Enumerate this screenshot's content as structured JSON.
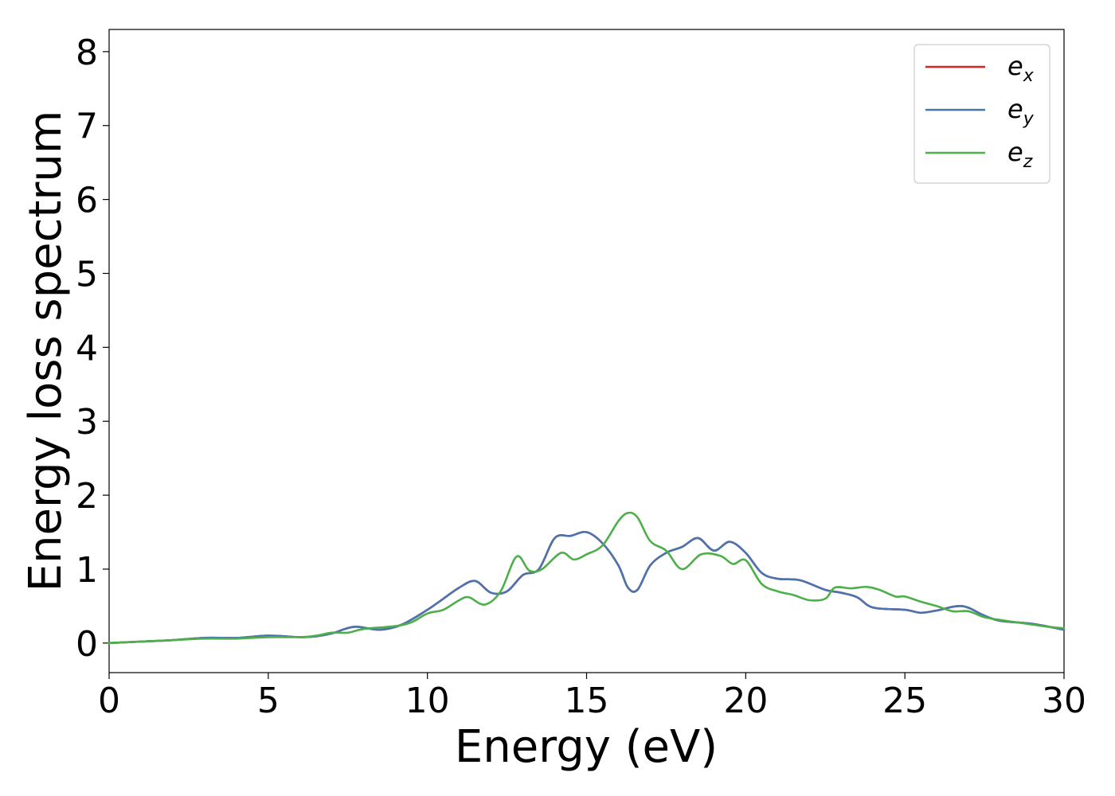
{
  "chart_data": {
    "type": "line",
    "xlabel": "Energy (eV)",
    "ylabel": "Energy loss spectrum",
    "xlim": [
      0,
      30
    ],
    "ylim": [
      -0.4,
      8.3
    ],
    "xticks": [
      0,
      5,
      10,
      15,
      20,
      25,
      30
    ],
    "xtick_labels": [
      "0",
      "5",
      "10",
      "15",
      "20",
      "25",
      "30"
    ],
    "yticks": [
      0,
      1,
      2,
      3,
      4,
      5,
      6,
      7,
      8
    ],
    "ytick_labels": [
      "0",
      "1",
      "2",
      "3",
      "4",
      "5",
      "6",
      "7",
      "8"
    ],
    "grid": false,
    "legend_position": "top-right",
    "series": [
      {
        "name": "e_x",
        "label_base": "e",
        "label_sub": "x",
        "color": "#d62728",
        "x": [
          0,
          1,
          2,
          3,
          4,
          5,
          6,
          6.5,
          7,
          7.7,
          8.5,
          9.2,
          10,
          10.5,
          11,
          11.5,
          12,
          12.5,
          13,
          13.5,
          14,
          14.5,
          15,
          15.5,
          16,
          16.3,
          16.6,
          17,
          17.5,
          18,
          18.5,
          19,
          19.5,
          20,
          20.5,
          21,
          21.7,
          22.5,
          23,
          23.5,
          24,
          25,
          25.5,
          26,
          26.8,
          27.5,
          28,
          29,
          30
        ],
        "y": [
          0,
          0.02,
          0.04,
          0.07,
          0.07,
          0.1,
          0.08,
          0.09,
          0.13,
          0.22,
          0.18,
          0.25,
          0.45,
          0.6,
          0.75,
          0.84,
          0.68,
          0.7,
          0.92,
          1.0,
          1.42,
          1.45,
          1.5,
          1.35,
          1.05,
          0.75,
          0.72,
          1.05,
          1.22,
          1.3,
          1.42,
          1.25,
          1.37,
          1.22,
          0.95,
          0.87,
          0.85,
          0.72,
          0.68,
          0.62,
          0.48,
          0.45,
          0.41,
          0.44,
          0.5,
          0.37,
          0.3,
          0.26,
          0.18
        ]
      },
      {
        "name": "e_y",
        "label_base": "e",
        "label_sub": "y",
        "color": "#4a74b0",
        "x": [
          0,
          1,
          2,
          3,
          4,
          5,
          6,
          6.5,
          7,
          7.7,
          8.5,
          9.2,
          10,
          10.5,
          11,
          11.5,
          12,
          12.5,
          13,
          13.5,
          14,
          14.5,
          15,
          15.5,
          16,
          16.3,
          16.6,
          17,
          17.5,
          18,
          18.5,
          19,
          19.5,
          20,
          20.5,
          21,
          21.7,
          22.5,
          23,
          23.5,
          24,
          25,
          25.5,
          26,
          26.8,
          27.5,
          28,
          29,
          30
        ],
        "y": [
          0,
          0.02,
          0.04,
          0.07,
          0.07,
          0.1,
          0.08,
          0.09,
          0.13,
          0.22,
          0.18,
          0.25,
          0.45,
          0.6,
          0.75,
          0.84,
          0.68,
          0.7,
          0.92,
          1.0,
          1.42,
          1.45,
          1.5,
          1.35,
          1.05,
          0.75,
          0.72,
          1.05,
          1.22,
          1.3,
          1.42,
          1.25,
          1.37,
          1.22,
          0.95,
          0.87,
          0.85,
          0.72,
          0.68,
          0.62,
          0.48,
          0.45,
          0.41,
          0.44,
          0.5,
          0.37,
          0.3,
          0.26,
          0.18
        ]
      },
      {
        "name": "e_z",
        "label_base": "e",
        "label_sub": "z",
        "color": "#4daf4a",
        "x": [
          0,
          1,
          2,
          3,
          4,
          5,
          6,
          6.5,
          7,
          7.5,
          8,
          9,
          9.5,
          10,
          10.5,
          11,
          11.3,
          11.8,
          12.3,
          12.8,
          13.2,
          13.6,
          14.2,
          14.6,
          15,
          15.5,
          16,
          16.3,
          16.6,
          17,
          17.5,
          18,
          18.6,
          19.2,
          19.6,
          20,
          20.5,
          21,
          21.5,
          22,
          22.5,
          22.8,
          23.3,
          23.8,
          24.2,
          24.7,
          25,
          25.5,
          26,
          26.5,
          27,
          27.5,
          28.2,
          29,
          29.5,
          30
        ],
        "y": [
          0,
          0.02,
          0.04,
          0.06,
          0.06,
          0.08,
          0.08,
          0.1,
          0.14,
          0.14,
          0.19,
          0.23,
          0.28,
          0.4,
          0.45,
          0.58,
          0.62,
          0.52,
          0.7,
          1.17,
          0.98,
          1.0,
          1.22,
          1.13,
          1.2,
          1.32,
          1.65,
          1.76,
          1.7,
          1.38,
          1.25,
          1.0,
          1.2,
          1.18,
          1.07,
          1.12,
          0.8,
          0.7,
          0.65,
          0.58,
          0.6,
          0.75,
          0.74,
          0.76,
          0.72,
          0.63,
          0.63,
          0.56,
          0.5,
          0.43,
          0.43,
          0.35,
          0.3,
          0.25,
          0.22,
          0.2
        ]
      }
    ]
  }
}
